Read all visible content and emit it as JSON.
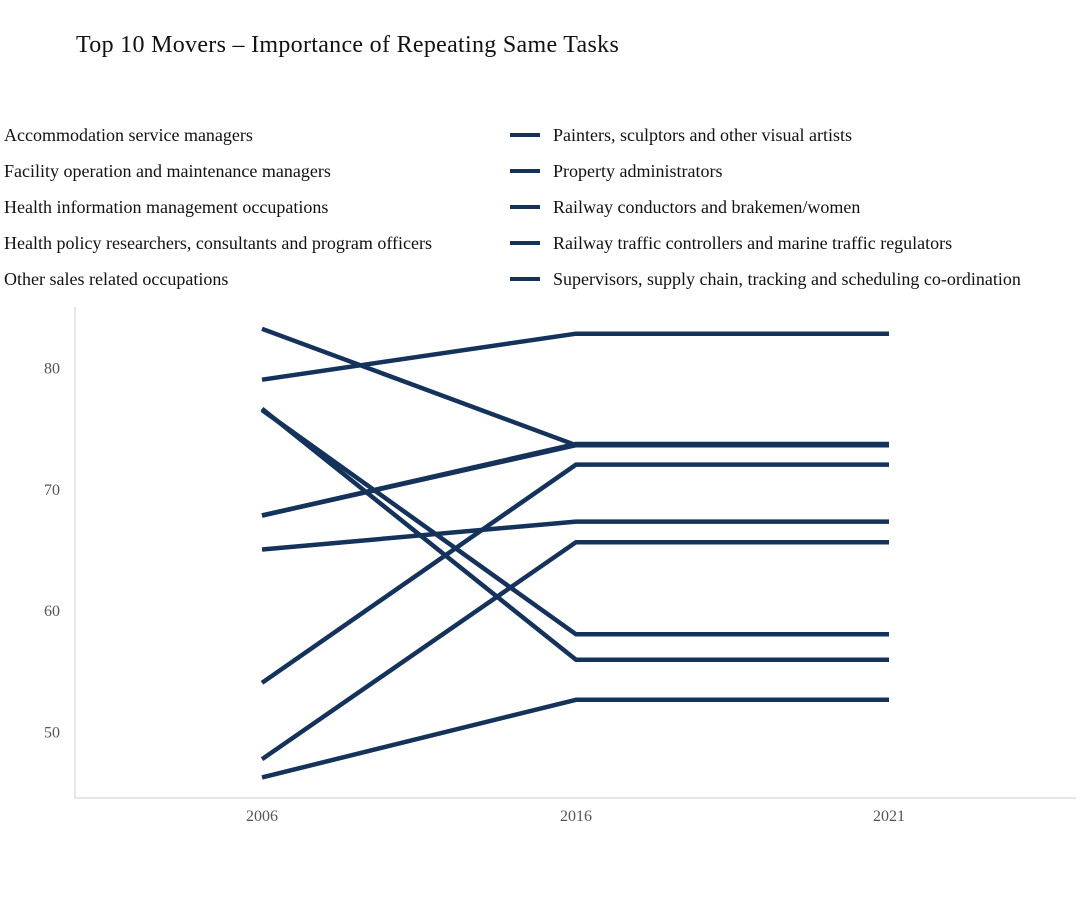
{
  "chart_data": {
    "type": "line",
    "title": "Top 10 Movers – Importance of Repeating Same Tasks",
    "xlabel": "",
    "ylabel": "",
    "categories": [
      "2006",
      "2016",
      "2021"
    ],
    "ylim": [
      44.5,
      85
    ],
    "yticks": [
      50,
      60,
      70,
      80
    ],
    "grid": false,
    "legend_placement": "top",
    "line_color": "#14325a",
    "axis_color": "#dddddd",
    "series": [
      {
        "name": "Accommodation service managers",
        "values": [
          76.5,
          58.0,
          58.0
        ]
      },
      {
        "name": "Facility operation and maintenance managers",
        "values": [
          67.8,
          73.6,
          73.6
        ]
      },
      {
        "name": "Health information management occupations",
        "values": [
          54.0,
          72.0,
          72.0
        ]
      },
      {
        "name": "Health policy researchers, consultants and program officers",
        "values": [
          79.0,
          82.8,
          82.8
        ]
      },
      {
        "name": "Other sales related occupations",
        "values": [
          65.0,
          67.3,
          67.3
        ]
      },
      {
        "name": "Painters, sculptors and other visual artists",
        "values": [
          46.2,
          52.6,
          52.6
        ]
      },
      {
        "name": "Property administrators",
        "values": [
          83.2,
          73.6,
          73.6
        ]
      },
      {
        "name": "Railway conductors and brakemen/women",
        "values": [
          76.6,
          55.9,
          55.9
        ]
      },
      {
        "name": "Railway traffic controllers and marine traffic regulators",
        "values": [
          47.7,
          65.6,
          65.6
        ]
      },
      {
        "name": "Supervisors, supply chain, tracking and scheduling co-ordination",
        "values": [
          67.8,
          73.7,
          73.7
        ]
      }
    ]
  }
}
